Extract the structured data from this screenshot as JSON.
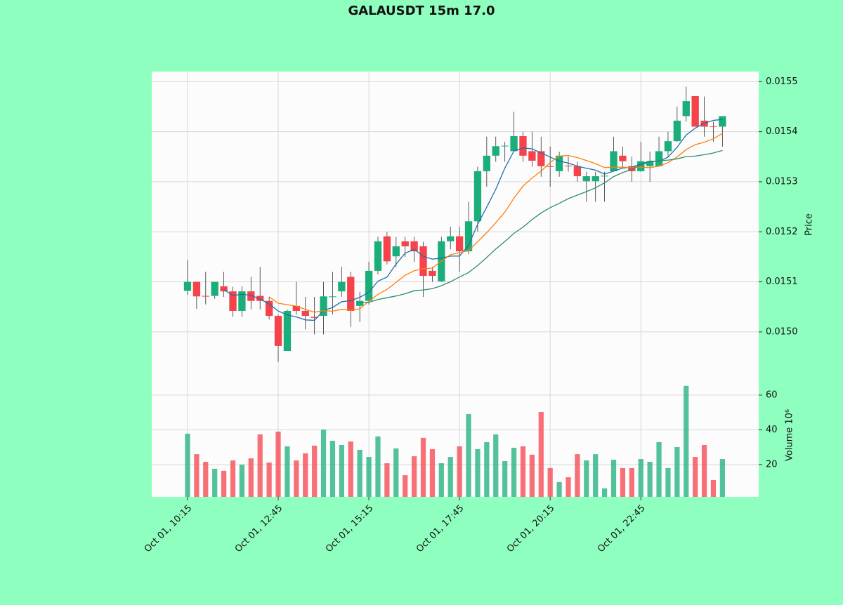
{
  "chart_data": {
    "type": "candlestick",
    "title": "GALAUSDT 15m 17.0",
    "ylabel": "Price",
    "volume_label": "Volume  10⁶",
    "open": [
      0.015082,
      0.0151,
      0.015072,
      0.015072,
      0.015091,
      0.015081,
      0.015042,
      0.015081,
      0.015072,
      0.015062,
      0.015032,
      0.014962,
      0.015052,
      0.015042,
      0.01503,
      0.015032,
      0.01507,
      0.015081,
      0.01511,
      0.015052,
      0.015062,
      0.015122,
      0.015191,
      0.015151,
      0.015181,
      0.015181,
      0.015171,
      0.015122,
      0.015101,
      0.015181,
      0.015191,
      0.015161,
      0.015221,
      0.015321,
      0.015352,
      0.015371,
      0.015361,
      0.015391,
      0.015361,
      0.015361,
      0.015331,
      0.015321,
      0.015332,
      0.015331,
      0.015301,
      0.015301,
      0.015311,
      0.015321,
      0.015352,
      0.015331,
      0.015321,
      0.015331,
      0.015331,
      0.015361,
      0.015381,
      0.015431,
      0.015471,
      0.015422,
      0.015411,
      0.01541
    ],
    "high": [
      0.015144,
      0.0151,
      0.01512,
      0.0151,
      0.01512,
      0.01509,
      0.015091,
      0.01511,
      0.01513,
      0.01507,
      0.015035,
      0.015045,
      0.0151,
      0.01507,
      0.01507,
      0.0151,
      0.01512,
      0.01513,
      0.01512,
      0.01508,
      0.01514,
      0.01519,
      0.0152,
      0.01519,
      0.01519,
      0.01519,
      0.01518,
      0.01513,
      0.01519,
      0.01521,
      0.01521,
      0.01526,
      0.01533,
      0.01539,
      0.01539,
      0.01538,
      0.01544,
      0.0154,
      0.0154,
      0.01539,
      0.01537,
      0.01536,
      0.01535,
      0.01534,
      0.01532,
      0.01532,
      0.01532,
      0.01539,
      0.01537,
      0.01535,
      0.01538,
      0.01536,
      0.01539,
      0.0154,
      0.01545,
      0.01549,
      0.01547,
      0.01547,
      0.01542,
      0.01543
    ],
    "low": [
      0.015074,
      0.015046,
      0.015055,
      0.015066,
      0.01507,
      0.01503,
      0.01503,
      0.015045,
      0.015045,
      0.015025,
      0.01494,
      0.014962,
      0.015035,
      0.015005,
      0.014995,
      0.014995,
      0.015035,
      0.01507,
      0.01501,
      0.01502,
      0.015055,
      0.015115,
      0.015135,
      0.01513,
      0.01515,
      0.01514,
      0.01507,
      0.0151,
      0.0151,
      0.015165,
      0.01512,
      0.015155,
      0.0152,
      0.01529,
      0.01534,
      0.01534,
      0.01536,
      0.01534,
      0.01533,
      0.01531,
      0.01529,
      0.01531,
      0.01532,
      0.0153,
      0.01526,
      0.01526,
      0.01526,
      0.01532,
      0.01533,
      0.0153,
      0.01532,
      0.0153,
      0.01533,
      0.01535,
      0.01538,
      0.01542,
      0.01541,
      0.01539,
      0.01538,
      0.01537
    ],
    "close": [
      0.0151,
      0.015071,
      0.015071,
      0.0151,
      0.015081,
      0.015042,
      0.015081,
      0.015062,
      0.015062,
      0.015032,
      0.014972,
      0.015042,
      0.015042,
      0.015032,
      0.015028,
      0.015071,
      0.015071,
      0.0151,
      0.015042,
      0.015062,
      0.015122,
      0.015181,
      0.015141,
      0.015171,
      0.015171,
      0.015161,
      0.015112,
      0.015112,
      0.015181,
      0.015191,
      0.015161,
      0.015221,
      0.015321,
      0.015352,
      0.015371,
      0.015372,
      0.015391,
      0.015352,
      0.015342,
      0.015331,
      0.01533,
      0.015352,
      0.015331,
      0.015311,
      0.015311,
      0.015311,
      0.015312,
      0.015361,
      0.015341,
      0.015321,
      0.015341,
      0.015341,
      0.015361,
      0.015381,
      0.015422,
      0.015461,
      0.01541,
      0.01541,
      0.01541,
      0.015431
    ],
    "volume": [
      37.8,
      26,
      21.6,
      17.6,
      16.4,
      22.4,
      20,
      23.6,
      37.4,
      21.2,
      39,
      30.5,
      22.4,
      26.5,
      30.9,
      40.2,
      33.7,
      31.3,
      33.3,
      28.5,
      24.4,
      36.2,
      20.8,
      29.3,
      13.9,
      24.8,
      35.4,
      28.9,
      20.8,
      24.4,
      30.5,
      49.1,
      28.9,
      32.9,
      37.4,
      22,
      29.7,
      30.5,
      25.7,
      50.3,
      18,
      9.9,
      12.7,
      26,
      22.4,
      26,
      6.3,
      22.8,
      18,
      18,
      23.2,
      21.6,
      32.9,
      18,
      30.1,
      65.3,
      24.4,
      31.3,
      11.1,
      23.2
    ],
    "up_color": "#1aaf7a",
    "down_color": "#f5424b",
    "mav": [
      5,
      10,
      20
    ],
    "mav_colors": [
      "#1f6fa8",
      "#ff7f0e",
      "#2a8f6a"
    ],
    "grid": true,
    "xlim": [
      -3.95,
      63.0
    ],
    "xticks": [
      {
        "value": 0,
        "label": "Oct 01, 10:15"
      },
      {
        "value": 10,
        "label": "Oct 01, 12:45"
      },
      {
        "value": 20,
        "label": "Oct 01, 15:15"
      },
      {
        "value": 30,
        "label": "Oct 01, 17:45"
      },
      {
        "value": 40,
        "label": "Oct 01, 20:15"
      },
      {
        "value": 50,
        "label": "Oct 01, 22:45"
      }
    ],
    "ylim": [
      0.014927,
      0.01552
    ],
    "yticks": [
      {
        "value": 0.015,
        "label": "0.0150"
      },
      0.0151,
      0.0152,
      0.0153,
      0.0154,
      0.0155
    ],
    "volume_ylim": [
      1.4,
      73.3
    ],
    "volume_yticks": [
      20,
      40,
      60
    ]
  }
}
